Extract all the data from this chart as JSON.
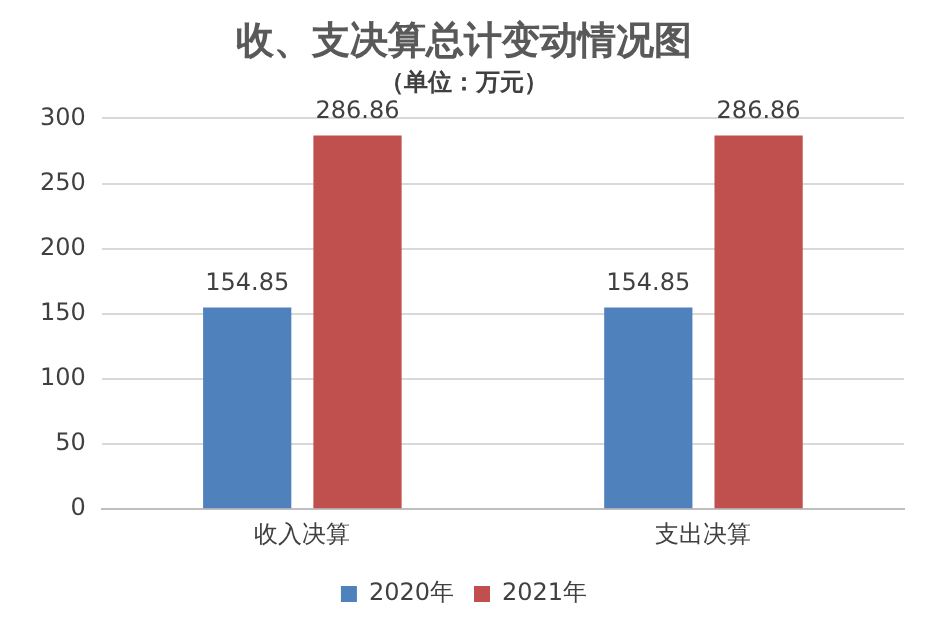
{
  "chart_data": {
    "type": "bar",
    "title": "收、支决算总计变动情况图",
    "subtitle": "（单位：万元）",
    "categories": [
      "收入决算",
      "支出决算"
    ],
    "series": [
      {
        "name": "2020年",
        "color": "#4f81bd",
        "values": [
          154.85,
          154.85
        ]
      },
      {
        "name": "2021年",
        "color": "#c0504d",
        "values": [
          286.86,
          286.86
        ]
      }
    ],
    "ylim": [
      0,
      300
    ],
    "yticks": [
      0,
      50,
      100,
      150,
      200,
      250,
      300
    ],
    "grid": "y",
    "legend": "bottom",
    "data_labels": true
  }
}
